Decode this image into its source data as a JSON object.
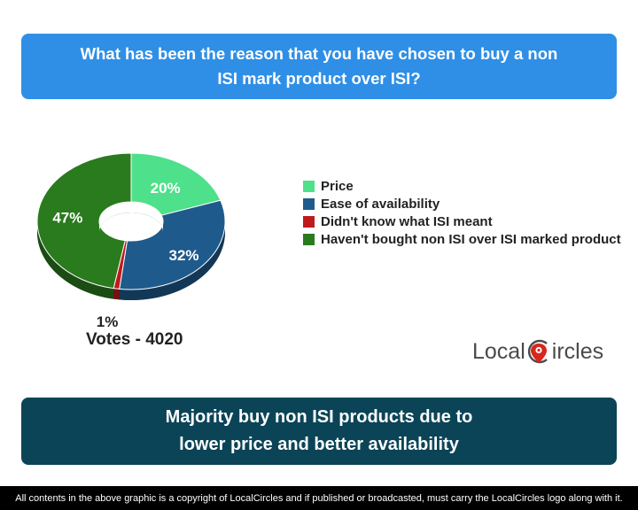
{
  "question": "What has been the reason that you have chosen to buy a non ISI mark product over ISI?",
  "chart_data": {
    "type": "pie",
    "title": "",
    "categories": [
      "Price",
      "Ease of availability",
      "Didn't know what ISI meant",
      "Haven't bought non ISI over ISI marked product"
    ],
    "values": [
      20,
      32,
      1,
      47
    ],
    "labels": [
      "20%",
      "32%",
      "1%",
      "47%"
    ],
    "colors": [
      "#4ee08a",
      "#1f5a8c",
      "#c0191c",
      "#2a7a1e"
    ],
    "donut": true,
    "legend_position": "right"
  },
  "votes": "Votes - 4020",
  "logo": {
    "text_before": "Local",
    "text_after": "ircles",
    "icon": "localcircles-logo-icon"
  },
  "summary": "Majority buy non ISI products due to lower price and better availability",
  "footer": "All contents in the above graphic is a copyright of LocalCircles and if published or broadcasted, must carry the LocalCircles logo along with it."
}
